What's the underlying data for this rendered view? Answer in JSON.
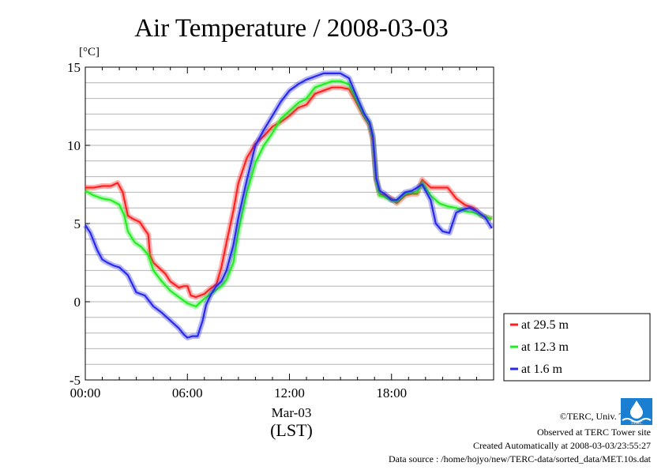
{
  "chart_data": {
    "type": "line",
    "title": "Air Temperature / 2008-03-03",
    "ylabel": "[°C]",
    "xlabel": "(LST)",
    "date_label": "Mar-03",
    "x_ticks": [
      "00:00",
      "06:00",
      "12:00",
      "18:00"
    ],
    "x_tick_hours": [
      0,
      6,
      12,
      18
    ],
    "xlim": [
      0,
      24
    ],
    "ylim": [
      -5,
      15
    ],
    "y_ticks": [
      -5,
      0,
      5,
      10,
      15
    ],
    "grid": true,
    "legend_position": "right, below plot",
    "series": [
      {
        "name": "at 29.5 m",
        "color": "#ff2020",
        "x": [
          0,
          0.5,
          1,
          1.5,
          1.9,
          2.2,
          2.5,
          2.8,
          3.2,
          3.5,
          3.7,
          3.8,
          4,
          4.3,
          4.7,
          5,
          5.5,
          5.8,
          6,
          6.2,
          6.5,
          7,
          7.3,
          7.7,
          8,
          8.3,
          8.7,
          9,
          9.5,
          10,
          10.5,
          11,
          11.5,
          12,
          12.5,
          13,
          13.5,
          14,
          14.5,
          15,
          15.5,
          16,
          16.4,
          16.7,
          16.9,
          17.1,
          17.3,
          17.6,
          18,
          18.3,
          18.8,
          19.2,
          19.5,
          19.8,
          20.3,
          20.8,
          21.3,
          21.8,
          22.3,
          22.8,
          23.3,
          23.9
        ],
        "y": [
          7.3,
          7.3,
          7.4,
          7.4,
          7.6,
          7.0,
          5.5,
          5.3,
          5.1,
          4.6,
          4.3,
          3.0,
          2.5,
          2.2,
          1.8,
          1.3,
          0.9,
          1.0,
          1.0,
          0.4,
          0.3,
          0.5,
          0.8,
          1.1,
          2.2,
          3.8,
          5.8,
          7.6,
          9.2,
          10.1,
          10.6,
          11.2,
          11.5,
          11.9,
          12.4,
          12.6,
          13.3,
          13.5,
          13.7,
          13.7,
          13.6,
          12.6,
          11.8,
          11.3,
          10.3,
          7.8,
          6.9,
          6.8,
          6.6,
          6.3,
          6.8,
          6.9,
          6.9,
          7.8,
          7.3,
          7.3,
          7.3,
          6.6,
          6.2,
          6.0,
          5.5,
          5.3
        ]
      },
      {
        "name": "at 12.3 m",
        "color": "#20ee20",
        "x": [
          0,
          0.5,
          1,
          1.5,
          2,
          2.3,
          2.5,
          2.9,
          3.3,
          3.7,
          4,
          4.5,
          5,
          5.5,
          6,
          6.5,
          7,
          7.5,
          8,
          8.3,
          8.7,
          9,
          9.5,
          10,
          10.5,
          11,
          11.5,
          12,
          12.5,
          13,
          13.5,
          14,
          14.5,
          15,
          15.5,
          16,
          16.4,
          16.7,
          16.9,
          17.1,
          17.3,
          17.6,
          18,
          18.3,
          18.8,
          19.2,
          19.5,
          19.8,
          20.3,
          20.8,
          21.3,
          21.8,
          22.3,
          22.8,
          23.3,
          23.9
        ],
        "y": [
          7.1,
          6.8,
          6.6,
          6.5,
          6.2,
          5.5,
          4.5,
          3.8,
          3.5,
          3.0,
          2.0,
          1.3,
          0.7,
          0.3,
          -0.1,
          -0.3,
          0.2,
          0.6,
          1.0,
          1.4,
          2.5,
          4.5,
          7.0,
          8.9,
          10.0,
          10.8,
          11.7,
          12.2,
          12.7,
          13.0,
          13.7,
          13.9,
          14.1,
          14.1,
          13.9,
          12.8,
          11.9,
          11.4,
          10.5,
          7.8,
          6.8,
          6.7,
          6.5,
          6.4,
          6.9,
          7.0,
          7.0,
          7.6,
          6.8,
          6.3,
          6.1,
          6.0,
          5.8,
          5.7,
          5.5,
          5.3
        ]
      },
      {
        "name": "at 1.6 m",
        "color": "#2828ee",
        "x": [
          0,
          0.3,
          0.7,
          1,
          1.3,
          1.7,
          2,
          2.5,
          3,
          3.5,
          4,
          4.5,
          5,
          5.5,
          5.8,
          6,
          6.3,
          6.6,
          6.9,
          7.1,
          7.4,
          7.7,
          8,
          8.3,
          8.7,
          9,
          9.5,
          10,
          10.5,
          11,
          11.5,
          12,
          12.5,
          13,
          13.5,
          14,
          14.5,
          15,
          15.5,
          16,
          16.4,
          16.7,
          16.9,
          17.1,
          17.3,
          17.6,
          18,
          18.3,
          18.8,
          19.2,
          19.5,
          19.8,
          20.3,
          20.6,
          21,
          21.4,
          21.8,
          22.2,
          22.6,
          23,
          23.5,
          23.9
        ],
        "y": [
          4.9,
          4.4,
          3.3,
          2.7,
          2.5,
          2.3,
          2.2,
          1.7,
          0.6,
          0.4,
          -0.3,
          -0.7,
          -1.2,
          -1.7,
          -2.1,
          -2.3,
          -2.2,
          -2.2,
          -1.2,
          -0.2,
          0.5,
          1.0,
          1.3,
          2.0,
          3.6,
          5.4,
          7.8,
          10.0,
          11.0,
          11.9,
          12.8,
          13.5,
          13.9,
          14.2,
          14.4,
          14.6,
          14.6,
          14.6,
          14.3,
          13.0,
          12.0,
          11.5,
          10.6,
          7.9,
          7.1,
          6.9,
          6.5,
          6.5,
          7.0,
          7.1,
          7.3,
          7.5,
          6.5,
          5.0,
          4.5,
          4.4,
          5.7,
          5.9,
          6.0,
          5.8,
          5.4,
          4.7
        ]
      }
    ]
  },
  "footer": {
    "copyright": "©TERC, Univ. Tsukuba",
    "site": "Observed at TERC Tower site",
    "created": "Created Automatically at 2008-03-03/23:55:27",
    "source": "Data source : /home/hojyo/new/TERC-data/sorted_data/MET.10s.dat"
  },
  "logo": {
    "text": "TERC"
  }
}
